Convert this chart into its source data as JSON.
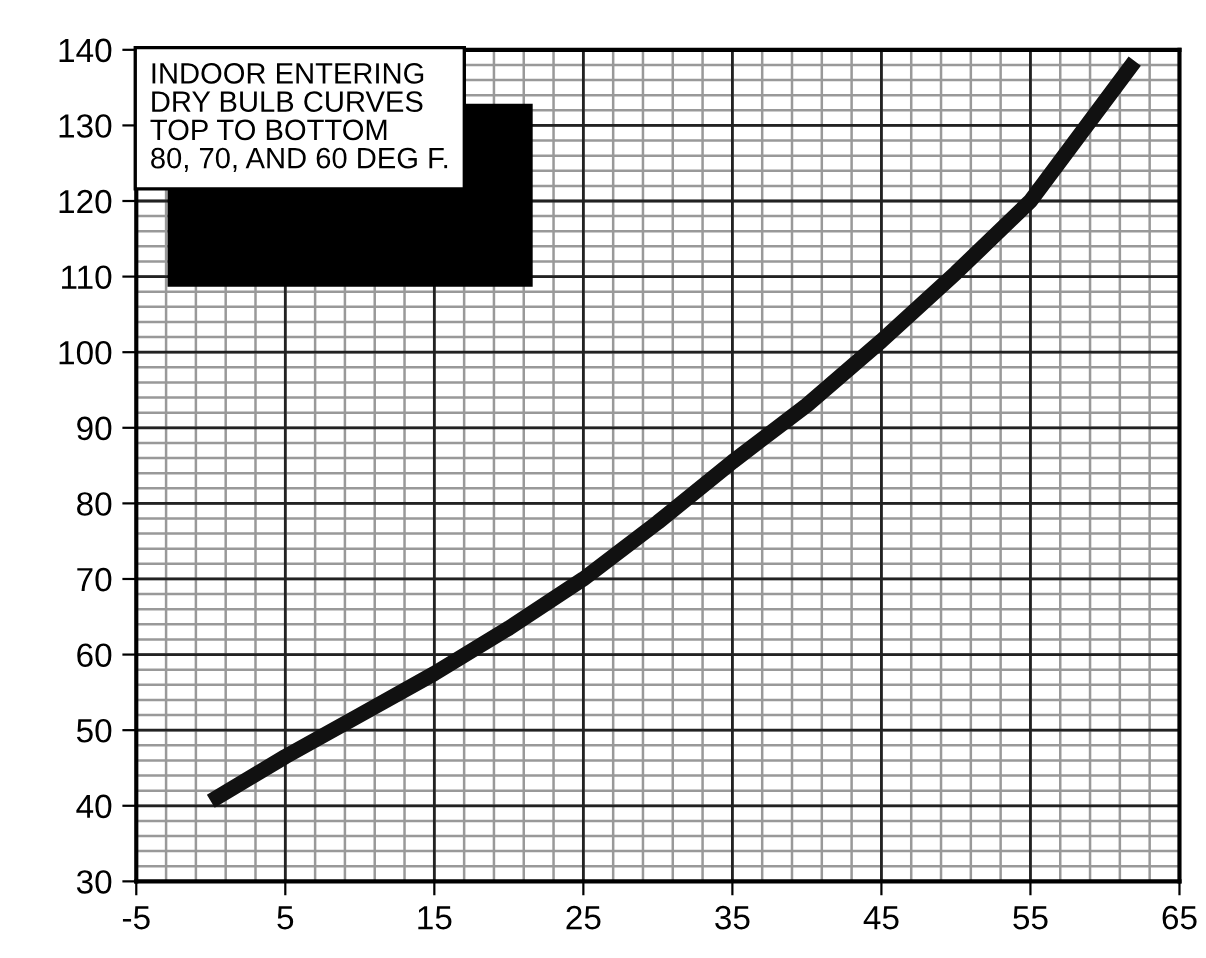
{
  "chart_data": {
    "type": "line",
    "x": [
      0,
      5,
      10,
      15,
      20,
      25,
      30,
      35,
      40,
      45,
      50,
      55,
      62
    ],
    "series": [
      {
        "color": "#111111",
        "values": [
          40.6,
          46.5,
          52,
          57.5,
          63.5,
          70,
          77.5,
          85.5,
          93,
          101.5,
          110.5,
          120,
          138.5
        ]
      }
    ],
    "xlim": [
      -5,
      65
    ],
    "xticks": [
      -5,
      5,
      15,
      25,
      35,
      45,
      55,
      65
    ],
    "ylim": [
      30,
      140
    ],
    "yticks": [
      30,
      40,
      50,
      60,
      70,
      80,
      90,
      100,
      110,
      120,
      130,
      140
    ],
    "grid": true,
    "marker": "none",
    "line_style": "solid",
    "annotations": [
      "INDOOR ENTERING\nDRY BULB CURVES\nTOP TO BOTTOM\n80, 70, AND 60 DEG F."
    ]
  }
}
